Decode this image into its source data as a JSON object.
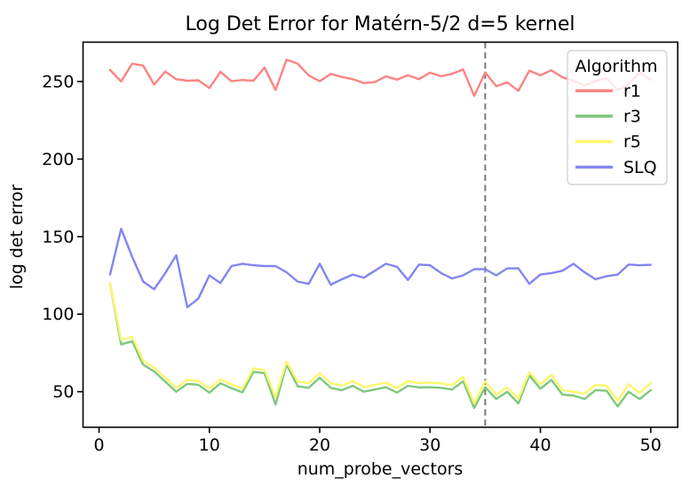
{
  "chart_data": {
    "type": "line",
    "title": "Log Det Error for Matérn-5/2 d=5 kernel",
    "xlabel": "num_probe_vectors",
    "ylabel": "log det error",
    "xlim": [
      -1.45,
      52.45
    ],
    "ylim": [
      27.1,
      275.4
    ],
    "x_ticks": [
      0,
      10,
      20,
      30,
      40,
      50
    ],
    "y_ticks": [
      50,
      100,
      150,
      200,
      250
    ],
    "grid": false,
    "legend": {
      "title": "Algorithm",
      "position": "upper right"
    },
    "vline": {
      "x": 35,
      "style": "dashed",
      "color": "#7a7a7a"
    },
    "x": [
      1,
      2,
      3,
      4,
      5,
      6,
      7,
      8,
      9,
      10,
      11,
      12,
      13,
      14,
      15,
      16,
      17,
      18,
      19,
      20,
      21,
      22,
      23,
      24,
      25,
      26,
      27,
      28,
      29,
      30,
      31,
      32,
      33,
      34,
      35,
      36,
      37,
      38,
      39,
      40,
      41,
      42,
      43,
      44,
      45,
      46,
      47,
      48,
      49,
      50
    ],
    "series": [
      {
        "name": "r1",
        "color": "#fc8383",
        "values": [
          257.5,
          250,
          261.5,
          260.3,
          248,
          256.5,
          251.5,
          250.5,
          250.8,
          245.8,
          256.3,
          250.2,
          251,
          250.5,
          259,
          244.5,
          264,
          261.5,
          254,
          250.2,
          255,
          253,
          251.5,
          249,
          249.6,
          253.4,
          251.2,
          254,
          251.5,
          255.7,
          253.4,
          255,
          257.8,
          240.7,
          255.9,
          247,
          249.5,
          244,
          257,
          254,
          257.3,
          252.7,
          250.5,
          247.4,
          250.2,
          252.1,
          244.5,
          248.3,
          255.9,
          251.2
        ]
      },
      {
        "name": "r3",
        "color": "#7ec87e",
        "values": [
          120,
          80.5,
          82.5,
          67.5,
          63,
          56.5,
          50,
          55,
          54.5,
          49.4,
          55.4,
          52.3,
          49.6,
          62.8,
          62,
          41.8,
          67.5,
          53.5,
          52.5,
          59,
          52.5,
          51,
          53.8,
          50,
          51.4,
          52.9,
          49.4,
          53.8,
          52.7,
          52.9,
          52.5,
          51.4,
          56.7,
          39.5,
          52.9,
          45.3,
          50,
          42.4,
          60.5,
          51.9,
          57.6,
          48.1,
          47.5,
          45.3,
          51,
          50.6,
          40.5,
          50,
          45.3,
          51
        ]
      },
      {
        "name": "r5",
        "color": "#fbf76c",
        "values": [
          120,
          83.5,
          85.5,
          70,
          65.5,
          59,
          52.5,
          57.5,
          57,
          52,
          57.8,
          54.8,
          52,
          65,
          64,
          46.5,
          69.5,
          56.5,
          55.5,
          62,
          55.5,
          54,
          56.8,
          53,
          54.4,
          55.8,
          52.4,
          56.8,
          55.6,
          55.8,
          55.4,
          54.3,
          59.5,
          42.4,
          56.7,
          48.1,
          52.9,
          45.3,
          62.5,
          54.8,
          60.9,
          51,
          50,
          48.7,
          54.4,
          53.8,
          44.3,
          54.8,
          49.1,
          55.7
        ]
      },
      {
        "name": "SLQ",
        "color": "#8484f3",
        "values": [
          125.5,
          155,
          137,
          121,
          116,
          126.5,
          138,
          104.5,
          110,
          125,
          120,
          131,
          132.5,
          131.5,
          131,
          131,
          127,
          121,
          119.5,
          132.5,
          119,
          122.5,
          125.5,
          123.5,
          128,
          132.5,
          130.5,
          122,
          132,
          131.5,
          126.5,
          123,
          125,
          129,
          129,
          125,
          129.5,
          129.5,
          119.5,
          125.5,
          126.5,
          128,
          132.5,
          127,
          122.5,
          124.5,
          125.5,
          132,
          131.5,
          131.8
        ]
      }
    ],
    "colors": {
      "background": "#ffffff",
      "spine": "#000000",
      "legend_border": "#cccccc",
      "legend_background": "rgba(255,255,255,0.8)"
    }
  }
}
